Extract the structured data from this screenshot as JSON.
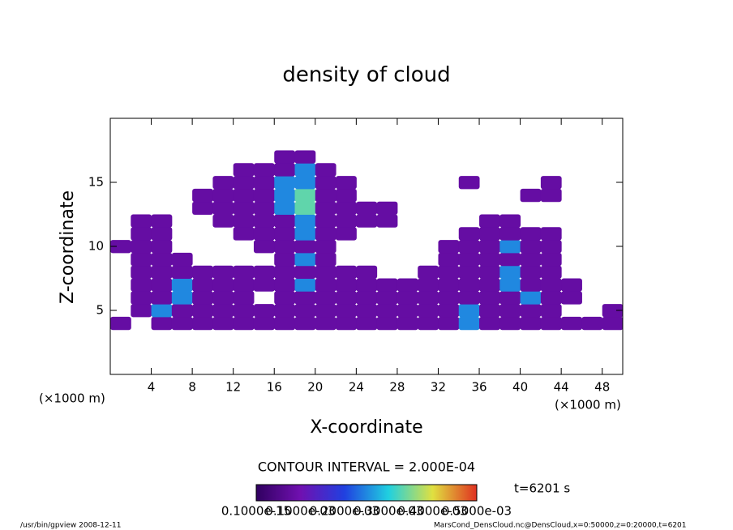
{
  "chart_data": {
    "type": "contour",
    "title": "density of cloud",
    "x_label": "X-coordinate",
    "y_label": "Z-coordinate",
    "x_units": [
      "(×1000 m)",
      "(×1000 m)"
    ],
    "contour_interval": "CONTOUR INTERVAL = 2.000E-04",
    "time_label": "t=6201 s",
    "footer_left": "/usr/bin/gpview  2008-12-11",
    "footer_right": "MarsCond_DensCloud.nc@DensCloud,x=0:50000,z=0:20000,t=6201",
    "colorbar_labels": [
      "0.1000e-15",
      "0.1000e-03",
      "0.2000e-03",
      "0.3000e-03",
      "0.4000e-03",
      "0.5000e-03"
    ],
    "colormap": [
      "#300060",
      "#7010b0",
      "#2040e0",
      "#20d0e0",
      "#e0e040",
      "#e03020"
    ],
    "clim": [
      0,
      0.0006
    ],
    "xlim": [
      0,
      50
    ],
    "ylim": [
      0,
      20
    ],
    "xticks": [
      4,
      8,
      12,
      16,
      20,
      24,
      28,
      32,
      36,
      40,
      44,
      48
    ],
    "yticks": [
      5,
      10,
      15
    ],
    "x": [
      1,
      3,
      5,
      7,
      9,
      11,
      13,
      15,
      17,
      19,
      21,
      23,
      25,
      27,
      29,
      31,
      33,
      35,
      37,
      39,
      41,
      43,
      45,
      47,
      49
    ],
    "y": [
      4,
      5,
      6,
      7,
      8,
      9,
      10,
      11,
      12,
      13,
      14,
      15,
      16,
      17
    ],
    "values": [
      [
        0.0001,
        null,
        0.0001,
        0.0001,
        0.0001,
        0.0001,
        0.0001,
        0.0001,
        0.0001,
        0.0001,
        0.0001,
        0.0001,
        0.0001,
        0.0001,
        0.0001,
        0.0001,
        0.0001,
        0.0003,
        0.0001,
        0.0001,
        0.0001,
        0.0001,
        0.0001,
        0.0001,
        0.0001
      ],
      [
        null,
        0.0001,
        0.0003,
        0.0001,
        0.0001,
        0.0001,
        0.0001,
        0.0001,
        0.0001,
        0.0001,
        0.0001,
        0.0001,
        0.0001,
        0.0001,
        0.0001,
        0.0001,
        0.0001,
        0.0003,
        0.0001,
        0.0001,
        0.0001,
        0.0001,
        null,
        null,
        0.0001
      ],
      [
        null,
        0.0001,
        0.0001,
        0.0003,
        0.0001,
        0.0001,
        0.0001,
        null,
        0.0001,
        0.0001,
        0.0001,
        0.0001,
        0.0001,
        0.0001,
        0.0001,
        0.0001,
        0.0001,
        0.0001,
        0.0001,
        0.0001,
        0.0003,
        0.0001,
        0.0001,
        null,
        null
      ],
      [
        null,
        0.0001,
        0.0001,
        0.0003,
        0.0001,
        0.0001,
        0.0001,
        0.0001,
        0.0001,
        0.0003,
        0.0001,
        0.0001,
        0.0001,
        0.0001,
        0.0001,
        0.0001,
        0.0001,
        0.0001,
        0.0001,
        0.0003,
        0.0001,
        0.0001,
        0.0001,
        null,
        null
      ],
      [
        null,
        0.0001,
        0.0001,
        0.0001,
        0.0001,
        0.0001,
        0.0001,
        0.0001,
        0.0001,
        0.0001,
        0.0001,
        0.0001,
        0.0001,
        null,
        null,
        0.0001,
        0.0001,
        0.0001,
        0.0001,
        0.0003,
        0.0001,
        0.0001,
        null,
        null,
        null
      ],
      [
        null,
        0.0001,
        0.0001,
        0.0001,
        null,
        null,
        null,
        null,
        0.0001,
        0.0003,
        0.0001,
        null,
        null,
        null,
        null,
        null,
        0.0001,
        0.0001,
        0.0001,
        0.0001,
        0.0001,
        0.0001,
        null,
        null,
        null
      ],
      [
        0.0001,
        0.0001,
        0.0001,
        null,
        null,
        null,
        null,
        0.0001,
        0.0001,
        0.0001,
        0.0001,
        null,
        null,
        null,
        null,
        null,
        0.0001,
        0.0001,
        0.0001,
        0.0003,
        0.0001,
        0.0001,
        null,
        null,
        null
      ],
      [
        null,
        0.0001,
        0.0001,
        null,
        null,
        null,
        0.0001,
        0.0001,
        0.0001,
        0.0003,
        0.0001,
        0.0001,
        null,
        null,
        null,
        null,
        null,
        0.0001,
        0.0001,
        0.0001,
        0.0001,
        0.0001,
        null,
        null,
        null
      ],
      [
        null,
        0.0001,
        0.0001,
        null,
        null,
        0.0001,
        0.0001,
        0.0001,
        0.0001,
        0.0003,
        0.0001,
        0.0001,
        0.0001,
        0.0001,
        null,
        null,
        null,
        null,
        0.0001,
        0.0001,
        null,
        null,
        null,
        null,
        null
      ],
      [
        null,
        null,
        null,
        null,
        0.0001,
        0.0001,
        0.0001,
        0.0001,
        0.0003,
        0.0004,
        0.0001,
        0.0001,
        0.0001,
        0.0001,
        null,
        null,
        null,
        null,
        null,
        null,
        null,
        null,
        null,
        null,
        null
      ],
      [
        null,
        null,
        null,
        null,
        0.0001,
        0.0001,
        0.0001,
        0.0001,
        0.0003,
        0.0004,
        0.0001,
        0.0001,
        null,
        null,
        null,
        null,
        null,
        null,
        null,
        null,
        0.0001,
        0.0001,
        null,
        null,
        null
      ],
      [
        null,
        null,
        null,
        null,
        null,
        0.0001,
        0.0001,
        0.0001,
        0.0003,
        0.0003,
        0.0001,
        0.0001,
        null,
        null,
        null,
        null,
        null,
        0.0001,
        null,
        null,
        null,
        0.0001,
        null,
        null,
        null
      ],
      [
        null,
        null,
        null,
        null,
        null,
        null,
        0.0001,
        0.0001,
        0.0001,
        0.0003,
        0.0001,
        null,
        null,
        null,
        null,
        null,
        null,
        null,
        null,
        null,
        null,
        null,
        null,
        null,
        null
      ],
      [
        null,
        null,
        null,
        null,
        null,
        null,
        null,
        null,
        0.0001,
        0.0001,
        null,
        null,
        null,
        null,
        null,
        null,
        null,
        null,
        null,
        null,
        null,
        null,
        null,
        null,
        null
      ]
    ]
  }
}
